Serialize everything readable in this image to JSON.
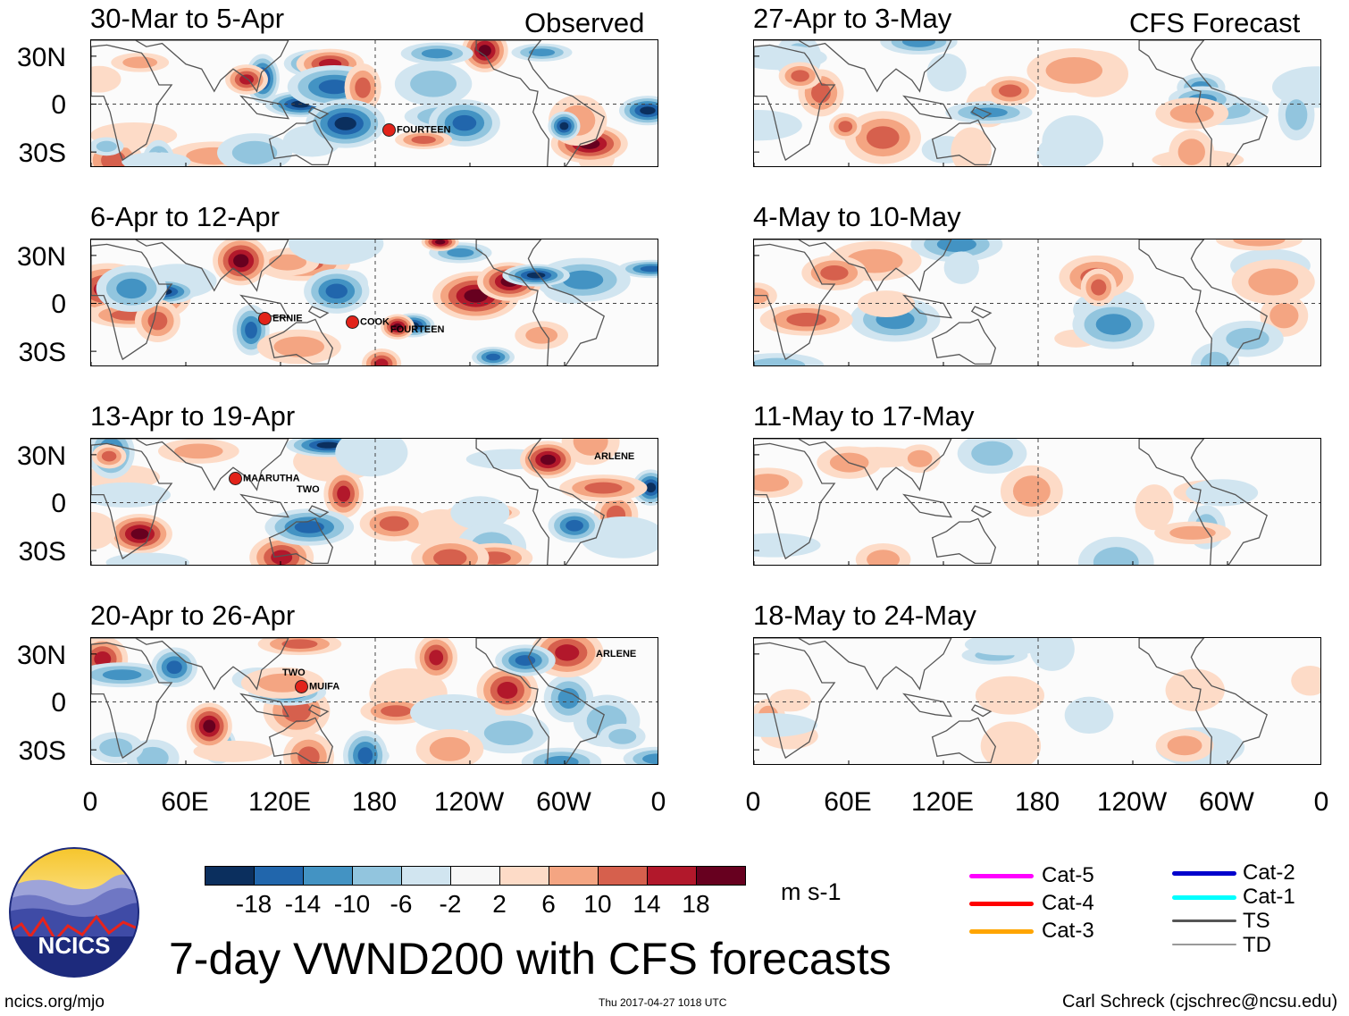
{
  "headers": {
    "observed": "Observed",
    "forecast": "CFS Forecast"
  },
  "panels_left": [
    {
      "period": "30-Mar to 5-Apr"
    },
    {
      "period": "6-Apr to 12-Apr"
    },
    {
      "period": "13-Apr to 19-Apr"
    },
    {
      "period": "20-Apr to 26-Apr"
    }
  ],
  "panels_right": [
    {
      "period": "27-Apr to 3-May"
    },
    {
      "period": "4-May to 10-May"
    },
    {
      "period": "11-May to 17-May"
    },
    {
      "period": "18-May to 24-May"
    }
  ],
  "lat_labels": [
    "30N",
    "0",
    "30S"
  ],
  "lon_labels": [
    "0",
    "60E",
    "120E",
    "180",
    "120W",
    "60W",
    "0"
  ],
  "storms": {
    "p0": [
      "FOURTEEN"
    ],
    "p1": [
      "ERNIE",
      "COOK",
      "FOURTEEN"
    ],
    "p2": [
      "MAARUTHA",
      "TWO",
      "ARLENE"
    ],
    "p3": [
      "TWO",
      "MUIFA",
      "ARLENE"
    ]
  },
  "colorbar": {
    "labels": [
      "-18",
      "-14",
      "-10",
      "-6",
      "-2",
      "2",
      "6",
      "10",
      "14",
      "18"
    ],
    "colors": [
      "#0b2f5e",
      "#2166ac",
      "#4393c3",
      "#92c5de",
      "#d1e5f0",
      "#f7f7f7",
      "#fddbc7",
      "#f4a582",
      "#d6604d",
      "#b2182b",
      "#67001f"
    ],
    "units": "m s-1"
  },
  "legend": {
    "col1": [
      {
        "label": "Cat-5",
        "color": "#ff00ff"
      },
      {
        "label": "Cat-4",
        "color": "#ff0000"
      },
      {
        "label": "Cat-3",
        "color": "#ffa500"
      }
    ],
    "col2": [
      {
        "label": "Cat-2",
        "color": "#0000cc"
      },
      {
        "label": "Cat-1",
        "color": "#00ffff"
      },
      {
        "label": "TS",
        "color": "#555555"
      },
      {
        "label": "TD",
        "color": "#999999"
      }
    ]
  },
  "logo": {
    "text": "NCICS"
  },
  "main_title": "7-day VWND200 with CFS forecasts",
  "footer": {
    "url": "ncics.org/mjo",
    "timestamp": "Thu 2017-04-27 1018 UTC",
    "author": "Carl Schreck (cjschrec@ncsu.edu)"
  }
}
